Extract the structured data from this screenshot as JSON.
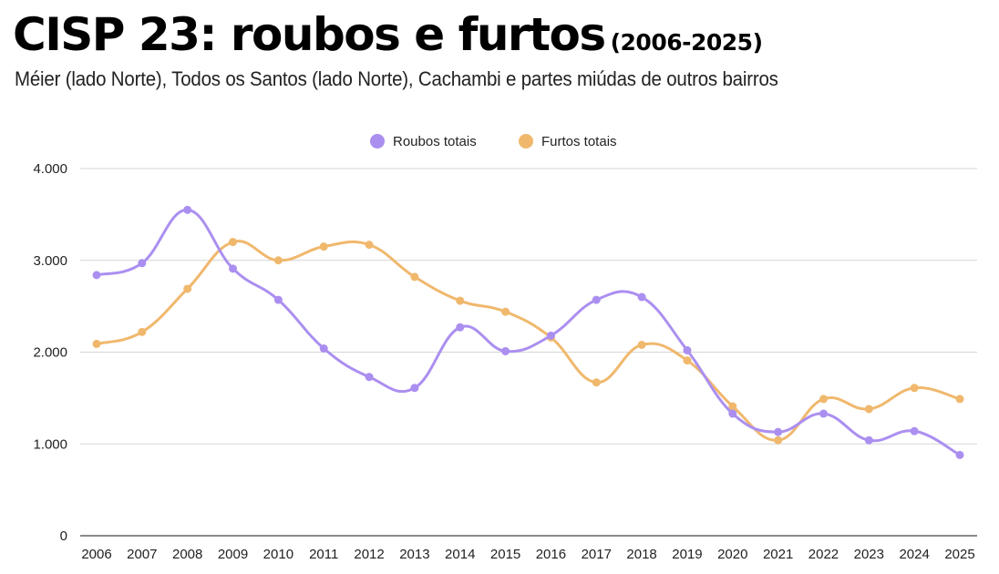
{
  "header": {
    "title": "CISP 23: roubos e furtos",
    "title_years": "(2006-2025)",
    "subtitle": "Méier (lado Norte), Todos os Santos (lado Norte), Cachambi e partes miúdas de outros bairros"
  },
  "chart_data": {
    "type": "line",
    "title": "CISP 23: roubos e furtos (2006-2025)",
    "subtitle": "Méier (lado Norte), Todos os Santos (lado Norte), Cachambi e partes miúdas de outros bairros",
    "xlabel": "",
    "ylabel": "",
    "categories": [
      "2006",
      "2007",
      "2008",
      "2009",
      "2010",
      "2011",
      "2012",
      "2013",
      "2014",
      "2015",
      "2016",
      "2017",
      "2018",
      "2019",
      "2020",
      "2021",
      "2022",
      "2023",
      "2024",
      "2025"
    ],
    "ylim": [
      0,
      4000
    ],
    "yticks": [
      0,
      1000,
      2000,
      3000,
      4000
    ],
    "ytick_labels": [
      "0",
      "1.000",
      "2.000",
      "3.000",
      "4.000"
    ],
    "grid": "horizontal",
    "legend_position": "top-center",
    "smooth": true,
    "series": [
      {
        "name": "Roubos totais",
        "color": "#ab8ff0",
        "values": [
          2840,
          2970,
          3550,
          2910,
          2570,
          2040,
          1730,
          1610,
          2270,
          2010,
          2180,
          2570,
          2600,
          2020,
          1330,
          1130,
          1330,
          1040,
          1140,
          880
        ]
      },
      {
        "name": "Furtos totais",
        "color": "#f0b86d",
        "values": [
          2090,
          2220,
          2690,
          3200,
          3000,
          3150,
          3170,
          2820,
          2560,
          2440,
          2160,
          1670,
          2080,
          1910,
          1410,
          1040,
          1490,
          1380,
          1610,
          1490
        ]
      }
    ]
  }
}
